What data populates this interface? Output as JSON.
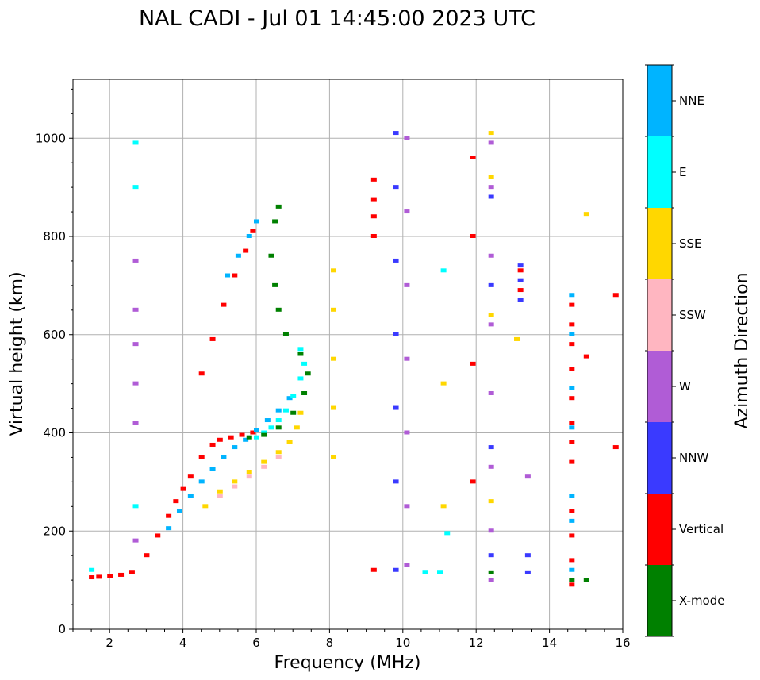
{
  "chart_data": {
    "type": "scatter",
    "title": "NAL CADI - Jul 01 14:45:00 2023 UTC",
    "xlabel": "Frequency (MHz)",
    "ylabel": "Virtual height (km)",
    "xlim": [
      1,
      16
    ],
    "ylim": [
      0,
      1120
    ],
    "xticks": [
      2,
      4,
      6,
      8,
      10,
      12,
      14,
      16
    ],
    "yticks": [
      0,
      200,
      400,
      600,
      800,
      1000
    ],
    "grid": true,
    "colorbar": {
      "label": "Azimuth Direction",
      "categories": [
        {
          "name": "X-mode",
          "color": "#008000"
        },
        {
          "name": "Vertical",
          "color": "#ff0000"
        },
        {
          "name": "NNW",
          "color": "#3a3aff"
        },
        {
          "name": "W",
          "color": "#b05cd6"
        },
        {
          "name": "SSW",
          "color": "#ffb6c1"
        },
        {
          "name": "SSE",
          "color": "#ffd700"
        },
        {
          "name": "E",
          "color": "#00ffff"
        },
        {
          "name": "NNE",
          "color": "#00b4ff"
        }
      ]
    },
    "traces": [
      {
        "category": "Vertical",
        "points": [
          [
            1.5,
            105
          ],
          [
            1.7,
            106
          ],
          [
            2.0,
            108
          ],
          [
            2.3,
            110
          ],
          [
            2.6,
            116
          ],
          [
            3.0,
            150
          ],
          [
            3.3,
            190
          ],
          [
            3.6,
            230
          ],
          [
            3.8,
            260
          ],
          [
            4.0,
            285
          ],
          [
            4.2,
            310
          ],
          [
            4.5,
            350
          ],
          [
            4.8,
            375
          ],
          [
            5.0,
            385
          ],
          [
            5.3,
            390
          ],
          [
            5.6,
            395
          ],
          [
            5.9,
            400
          ]
        ]
      },
      {
        "category": "NNE",
        "points": [
          [
            3.6,
            205
          ],
          [
            3.9,
            240
          ],
          [
            4.2,
            270
          ],
          [
            4.5,
            300
          ],
          [
            4.8,
            325
          ],
          [
            5.1,
            350
          ],
          [
            5.4,
            370
          ],
          [
            5.7,
            385
          ],
          [
            6.0,
            405
          ],
          [
            6.3,
            425
          ],
          [
            6.6,
            445
          ],
          [
            6.9,
            470
          ]
        ]
      },
      {
        "category": "E",
        "points": [
          [
            6.0,
            390
          ],
          [
            6.2,
            400
          ],
          [
            6.4,
            410
          ],
          [
            6.6,
            425
          ],
          [
            6.8,
            445
          ],
          [
            7.0,
            475
          ],
          [
            7.2,
            510
          ],
          [
            7.3,
            540
          ],
          [
            7.2,
            570
          ]
        ]
      },
      {
        "category": "SSE",
        "points": [
          [
            4.6,
            250
          ],
          [
            5.0,
            280
          ],
          [
            5.4,
            300
          ],
          [
            5.8,
            320
          ],
          [
            6.2,
            340
          ],
          [
            6.6,
            360
          ],
          [
            6.9,
            380
          ],
          [
            7.1,
            410
          ],
          [
            7.2,
            440
          ]
        ]
      },
      {
        "category": "SSW",
        "points": [
          [
            5.0,
            270
          ],
          [
            5.4,
            290
          ],
          [
            5.8,
            310
          ],
          [
            6.2,
            330
          ],
          [
            6.6,
            350
          ]
        ]
      },
      {
        "category": "X-mode",
        "points": [
          [
            5.8,
            390
          ],
          [
            6.2,
            395
          ],
          [
            6.6,
            410
          ],
          [
            7.0,
            440
          ],
          [
            7.3,
            480
          ],
          [
            7.4,
            520
          ],
          [
            7.2,
            560
          ],
          [
            6.8,
            600
          ],
          [
            6.6,
            650
          ],
          [
            6.5,
            700
          ],
          [
            6.4,
            760
          ],
          [
            6.5,
            830
          ],
          [
            6.6,
            860
          ]
        ]
      },
      {
        "category": "Vertical",
        "points": [
          [
            4.5,
            520
          ],
          [
            4.8,
            590
          ],
          [
            5.1,
            660
          ],
          [
            5.4,
            720
          ],
          [
            5.7,
            770
          ],
          [
            5.9,
            810
          ]
        ]
      },
      {
        "category": "NNE",
        "points": [
          [
            5.2,
            720
          ],
          [
            5.5,
            760
          ],
          [
            5.8,
            800
          ],
          [
            6.0,
            830
          ]
        ]
      },
      {
        "category": "W",
        "points": [
          [
            2.7,
            180
          ],
          [
            2.7,
            420
          ],
          [
            2.7,
            500
          ],
          [
            2.7,
            580
          ],
          [
            2.7,
            650
          ],
          [
            2.7,
            750
          ]
        ]
      },
      {
        "category": "E",
        "points": [
          [
            1.5,
            120
          ],
          [
            2.7,
            250
          ],
          [
            2.7,
            900
          ],
          [
            2.7,
            990
          ]
        ]
      },
      {
        "category": "NNW",
        "points": [
          [
            9.8,
            120
          ],
          [
            9.8,
            300
          ],
          [
            9.8,
            450
          ],
          [
            9.8,
            600
          ],
          [
            9.8,
            750
          ],
          [
            9.8,
            900
          ],
          [
            9.8,
            1010
          ]
        ]
      },
      {
        "category": "W",
        "points": [
          [
            10.1,
            130
          ],
          [
            10.1,
            250
          ],
          [
            10.1,
            400
          ],
          [
            10.1,
            550
          ],
          [
            10.1,
            700
          ],
          [
            10.1,
            850
          ],
          [
            10.1,
            1000
          ]
        ]
      },
      {
        "category": "Vertical",
        "points": [
          [
            9.2,
            120
          ],
          [
            9.2,
            800
          ],
          [
            9.2,
            840
          ],
          [
            9.2,
            875
          ],
          [
            9.2,
            915
          ],
          [
            11.9,
            300
          ],
          [
            11.9,
            540
          ],
          [
            11.9,
            800
          ],
          [
            11.9,
            960
          ]
        ]
      },
      {
        "category": "E",
        "points": [
          [
            10.6,
            116
          ],
          [
            11.0,
            116
          ],
          [
            11.2,
            195
          ],
          [
            11.1,
            730
          ]
        ]
      },
      {
        "category": "SSE",
        "points": [
          [
            8.1,
            350
          ],
          [
            8.1,
            450
          ],
          [
            8.1,
            550
          ],
          [
            8.1,
            650
          ],
          [
            8.1,
            730
          ],
          [
            11.1,
            250
          ],
          [
            11.1,
            500
          ],
          [
            12.4,
            260
          ],
          [
            12.4,
            640
          ],
          [
            12.4,
            920
          ],
          [
            12.4,
            1010
          ],
          [
            13.1,
            590
          ],
          [
            15.0,
            845
          ]
        ]
      },
      {
        "category": "W",
        "points": [
          [
            12.4,
            100
          ],
          [
            12.4,
            200
          ],
          [
            12.4,
            330
          ],
          [
            12.4,
            480
          ],
          [
            12.4,
            620
          ],
          [
            12.4,
            760
          ],
          [
            12.4,
            900
          ],
          [
            12.4,
            990
          ],
          [
            13.4,
            310
          ]
        ]
      },
      {
        "category": "NNW",
        "points": [
          [
            12.4,
            150
          ],
          [
            12.4,
            370
          ],
          [
            12.4,
            700
          ],
          [
            12.4,
            880
          ],
          [
            13.4,
            115
          ],
          [
            13.4,
            150
          ],
          [
            13.2,
            670
          ],
          [
            13.2,
            710
          ],
          [
            13.2,
            740
          ]
        ]
      },
      {
        "category": "Vertical",
        "points": [
          [
            13.2,
            690
          ],
          [
            13.2,
            730
          ],
          [
            14.6,
            90
          ],
          [
            14.6,
            140
          ],
          [
            14.6,
            190
          ],
          [
            14.6,
            240
          ],
          [
            14.6,
            340
          ],
          [
            14.6,
            380
          ],
          [
            14.6,
            420
          ],
          [
            14.6,
            470
          ],
          [
            14.6,
            530
          ],
          [
            14.6,
            580
          ],
          [
            14.6,
            620
          ],
          [
            14.6,
            660
          ],
          [
            15.0,
            555
          ],
          [
            15.8,
            370
          ],
          [
            15.8,
            680
          ]
        ]
      },
      {
        "category": "NNE",
        "points": [
          [
            14.6,
            120
          ],
          [
            14.6,
            220
          ],
          [
            14.6,
            270
          ],
          [
            14.6,
            410
          ],
          [
            14.6,
            490
          ],
          [
            14.6,
            600
          ],
          [
            14.6,
            680
          ]
        ]
      },
      {
        "category": "X-mode",
        "points": [
          [
            12.4,
            115
          ],
          [
            14.6,
            100
          ],
          [
            15.0,
            100
          ]
        ]
      }
    ]
  }
}
